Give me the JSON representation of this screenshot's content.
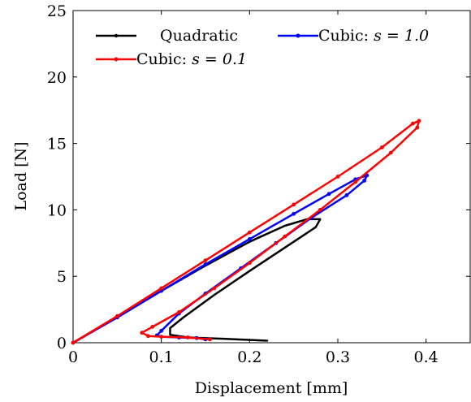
{
  "chart_data": {
    "type": "line",
    "title": "",
    "xlabel": "Displacement [mm]",
    "ylabel": "Load [N]",
    "xlim": [
      0,
      0.45
    ],
    "ylim": [
      0,
      25
    ],
    "xticks": [
      0,
      0.1,
      0.2,
      0.3,
      0.4
    ],
    "xtick_labels": [
      "0",
      "0.1",
      "0.2",
      "0.3",
      "0.4"
    ],
    "yticks": [
      0,
      5,
      10,
      15,
      20,
      25
    ],
    "ytick_labels": [
      "0",
      "5",
      "10",
      "15",
      "20",
      "25"
    ],
    "grid": false,
    "legend_position": "top",
    "series": [
      {
        "name": "Quadratic",
        "color": "#000000",
        "marker": "none",
        "x": [
          0,
          0.05,
          0.1,
          0.15,
          0.2,
          0.24,
          0.265,
          0.28,
          0.275,
          0.25,
          0.2,
          0.16,
          0.125,
          0.11,
          0.11,
          0.13,
          0.17,
          0.22
        ],
        "y": [
          0,
          1.9,
          3.9,
          5.8,
          7.6,
          8.8,
          9.3,
          9.3,
          8.7,
          7.6,
          5.4,
          3.6,
          1.9,
          1.1,
          0.6,
          0.4,
          0.3,
          0.15
        ]
      },
      {
        "name": "Cubic: s = 1.0",
        "name_prefix": "Cubic: ",
        "name_math": "s = 1.0",
        "color": "#0000ff",
        "marker": "dot",
        "x": [
          0,
          0.05,
          0.1,
          0.15,
          0.2,
          0.25,
          0.29,
          0.32,
          0.333,
          0.33,
          0.31,
          0.27,
          0.23,
          0.19,
          0.15,
          0.12,
          0.1,
          0.095,
          0.1,
          0.12,
          0.14,
          0.15
        ],
        "y": [
          0,
          1.9,
          3.9,
          5.9,
          7.8,
          9.7,
          11.2,
          12.3,
          12.6,
          12.2,
          11.1,
          9.4,
          7.5,
          5.6,
          3.7,
          2.2,
          0.9,
          0.55,
          0.45,
          0.4,
          0.35,
          0.25
        ]
      },
      {
        "name": "Cubic: s = 0.1",
        "name_prefix": "Cubic: ",
        "name_math": "s = 0.1",
        "color": "#ff0000",
        "marker": "dot",
        "x": [
          0,
          0.05,
          0.1,
          0.15,
          0.2,
          0.25,
          0.3,
          0.35,
          0.385,
          0.392,
          0.39,
          0.36,
          0.32,
          0.28,
          0.24,
          0.2,
          0.16,
          0.12,
          0.09,
          0.078,
          0.085,
          0.1,
          0.13,
          0.155
        ],
        "y": [
          0,
          2.0,
          4.1,
          6.2,
          8.3,
          10.4,
          12.5,
          14.7,
          16.5,
          16.7,
          16.2,
          14.3,
          12.1,
          10.0,
          8.0,
          6.0,
          4.1,
          2.3,
          1.2,
          0.75,
          0.5,
          0.45,
          0.4,
          0.25
        ]
      }
    ]
  }
}
